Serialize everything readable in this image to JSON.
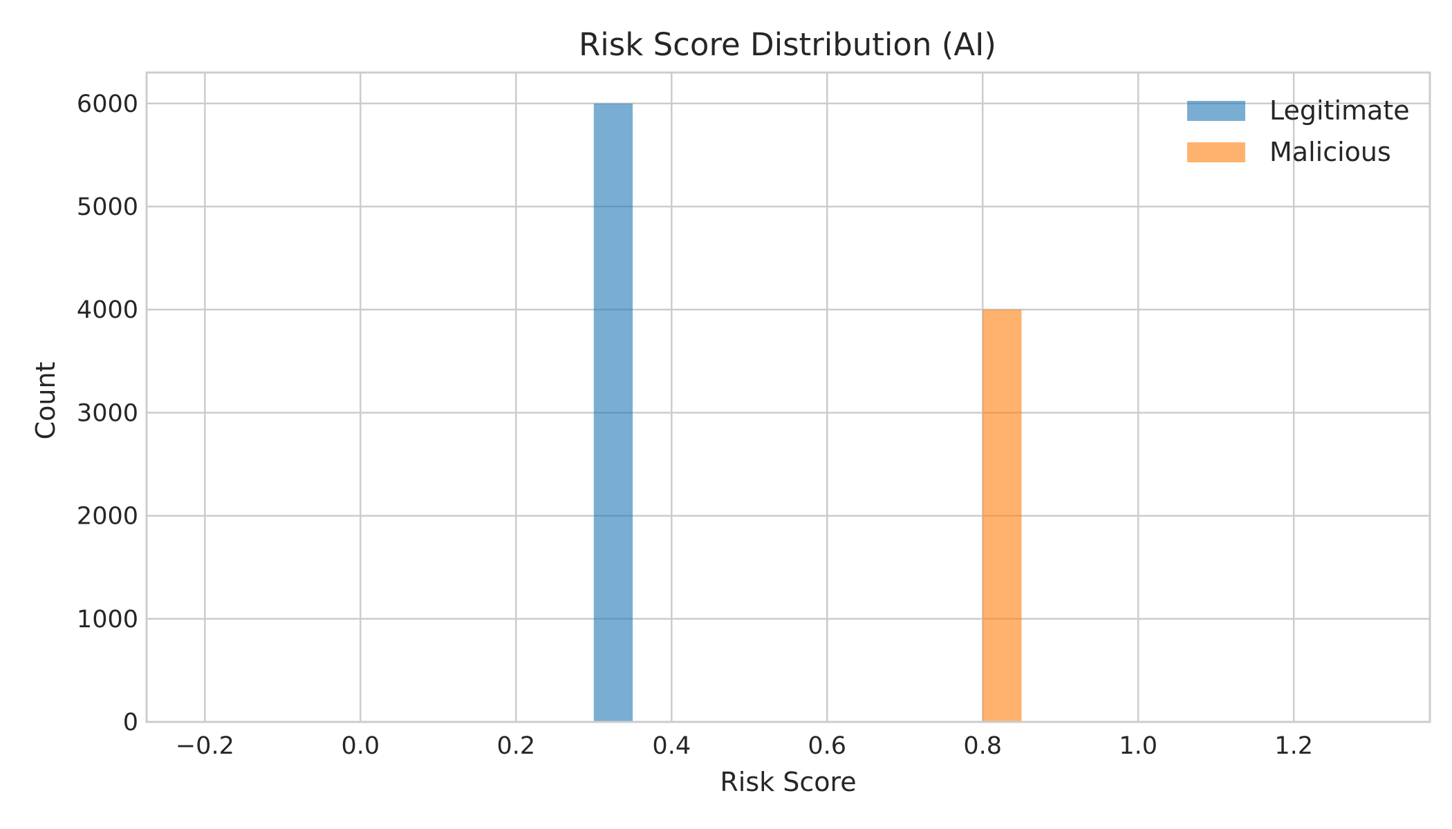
{
  "chart_data": {
    "type": "bar",
    "title": "Risk Score Distribution (AI)",
    "xlabel": "Risk Score",
    "ylabel": "Count",
    "xlim": [
      -0.275,
      1.375
    ],
    "ylim": [
      0,
      6300
    ],
    "xticks": [
      -0.2,
      0.0,
      0.2,
      0.4,
      0.6,
      0.8,
      1.0,
      1.2
    ],
    "xtick_labels": [
      "−0.2",
      "0.0",
      "0.2",
      "0.4",
      "0.6",
      "0.8",
      "1.0",
      "1.2"
    ],
    "yticks": [
      0,
      1000,
      2000,
      3000,
      4000,
      5000,
      6000
    ],
    "ytick_labels": [
      "0",
      "1000",
      "2000",
      "3000",
      "4000",
      "5000",
      "6000"
    ],
    "grid": true,
    "legend_position": "top-right",
    "series": [
      {
        "name": "Legitimate",
        "color": "#1f77b4",
        "bins": [
          {
            "x0": 0.3,
            "x1": 0.35,
            "count": 6000
          }
        ]
      },
      {
        "name": "Malicious",
        "color": "#ff7f0e",
        "bins": [
          {
            "x0": 0.8,
            "x1": 0.85,
            "count": 4000
          }
        ]
      }
    ]
  }
}
